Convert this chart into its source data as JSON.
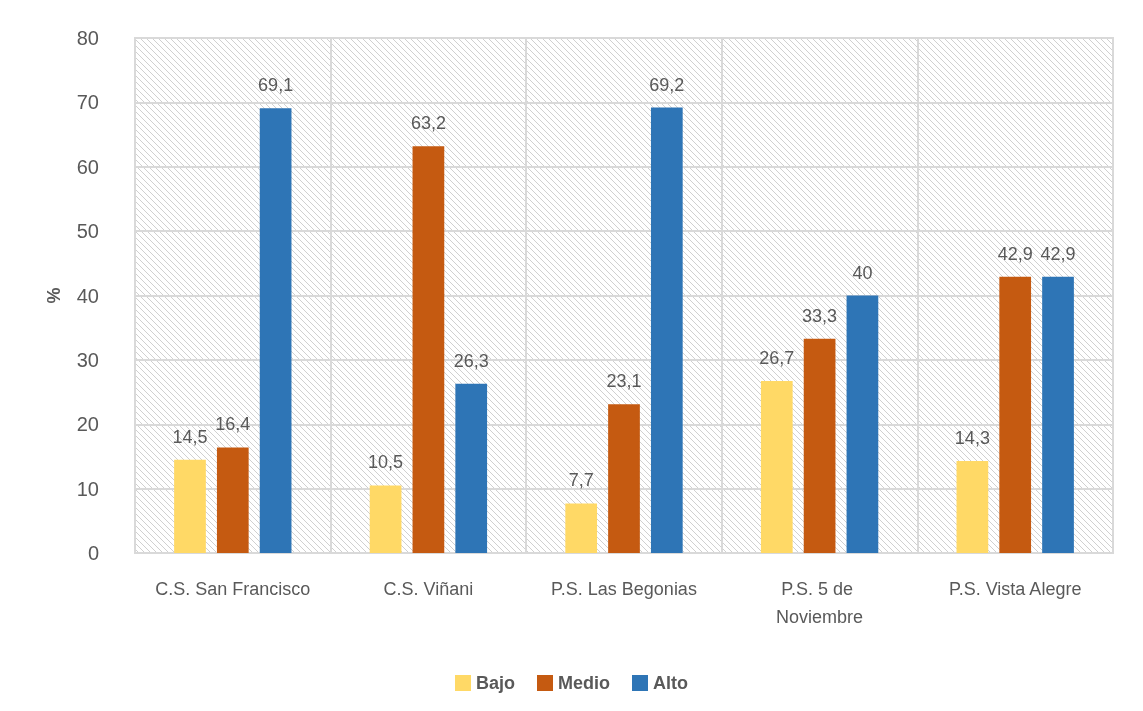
{
  "chart_data": {
    "type": "bar",
    "ylabel": "%",
    "categories": [
      "C.S. San Francisco",
      "C.S. Viñani",
      "P.S. Las Begonias",
      "P.S. 5 de Noviembre",
      "P.S. Vista Alegre"
    ],
    "series": [
      {
        "name": "Bajo",
        "color": "#ffd966",
        "values": [
          14.5,
          10.5,
          7.7,
          26.7,
          14.3
        ],
        "value_labels": [
          "14,5",
          "10,5",
          "7,7",
          "26,7",
          "14,3"
        ]
      },
      {
        "name": "Medio",
        "color": "#c55a11",
        "values": [
          16.4,
          63.2,
          23.1,
          33.3,
          42.9
        ],
        "value_labels": [
          "16,4",
          "63,2",
          "23,1",
          "33,3",
          "42,9"
        ]
      },
      {
        "name": "Alto",
        "color": "#2e75b6",
        "values": [
          69.1,
          26.3,
          69.2,
          40,
          42.9
        ],
        "value_labels": [
          "69,1",
          "26,3",
          "69,2",
          "40",
          "42,9"
        ]
      }
    ],
    "ylim": [
      0,
      80
    ],
    "yticks": [
      0,
      10,
      20,
      30,
      40,
      50,
      60,
      70,
      80
    ],
    "grid": true,
    "legend": "bottom"
  }
}
